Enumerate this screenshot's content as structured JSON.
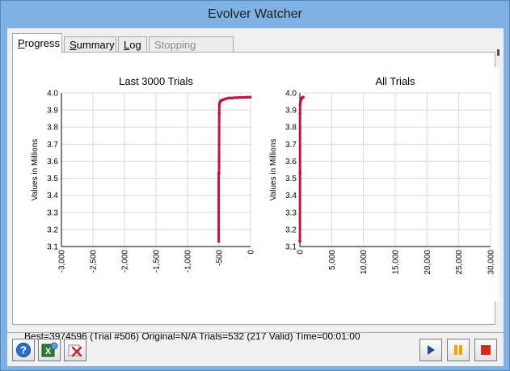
{
  "window": {
    "title": "Evolver Watcher"
  },
  "tabs": [
    {
      "label": "Progress",
      "accel": "P",
      "rest": "rogress"
    },
    {
      "label": "Summary",
      "accel": "S",
      "rest": "ummary"
    },
    {
      "label": "Log",
      "accel": "L",
      "rest": "og"
    },
    {
      "label": "Stopping Options",
      "accel": "",
      "rest": "Stopping Options"
    }
  ],
  "status": {
    "text": "Best=3974596 (Trial #506) Original=N/A Trials=532 (217 Valid) Time=00:01:00"
  },
  "buttons": {
    "help_icon": "help-icon",
    "excel_icon": "excel-report-icon",
    "remove_icon": "remove-icon",
    "play_icon": "play-icon",
    "pause_icon": "pause-icon",
    "stop_icon": "stop-icon"
  },
  "colors": {
    "series": "#c0143c",
    "grid": "#d8d8d8",
    "stop": "#d8291a",
    "pause": "#f0a000",
    "play": "#1f4e8a"
  },
  "chart_data": [
    {
      "type": "line",
      "title": "Last 3000 Trials",
      "ylabel": "Values in Millions",
      "xlim": [
        -3000,
        0
      ],
      "ylim": [
        3.1,
        4.0
      ],
      "xticks": [
        "-3,000",
        "-2,500",
        "-2,000",
        "-1,500",
        "-1,000",
        "-500",
        "0"
      ],
      "yticks": [
        "3.1",
        "3.2",
        "3.3",
        "3.4",
        "3.5",
        "3.6",
        "3.7",
        "3.8",
        "3.9",
        "4.0"
      ],
      "grid": true,
      "series": [
        {
          "x": [
            -505,
            -505,
            -500,
            -497,
            -495,
            -490,
            -480,
            -470,
            -440,
            -400,
            -350,
            -300,
            -250,
            -200,
            -150,
            -100,
            -50,
            -5
          ],
          "y": [
            3.13,
            3.53,
            3.53,
            3.88,
            3.93,
            3.94,
            3.95,
            3.955,
            3.96,
            3.965,
            3.97,
            3.97,
            3.972,
            3.973,
            3.974,
            3.974,
            3.975,
            3.975
          ]
        }
      ]
    },
    {
      "type": "line",
      "title": "All Trials",
      "ylabel": "Values in Millions",
      "xlim": [
        0,
        30000
      ],
      "ylim": [
        3.1,
        4.0
      ],
      "xticks": [
        "0",
        "5,000",
        "10,000",
        "15,000",
        "20,000",
        "25,000",
        "30,000"
      ],
      "yticks": [
        "3.1",
        "3.2",
        "3.3",
        "3.4",
        "3.5",
        "3.6",
        "3.7",
        "3.8",
        "3.9",
        "4.0"
      ],
      "grid": true,
      "series": [
        {
          "x": [
            0,
            10,
            20,
            30,
            40,
            60,
            100,
            200,
            300,
            400,
            532
          ],
          "y": [
            3.13,
            3.13,
            3.53,
            3.88,
            3.93,
            3.94,
            3.95,
            3.96,
            3.97,
            3.974,
            3.975
          ]
        }
      ]
    }
  ]
}
